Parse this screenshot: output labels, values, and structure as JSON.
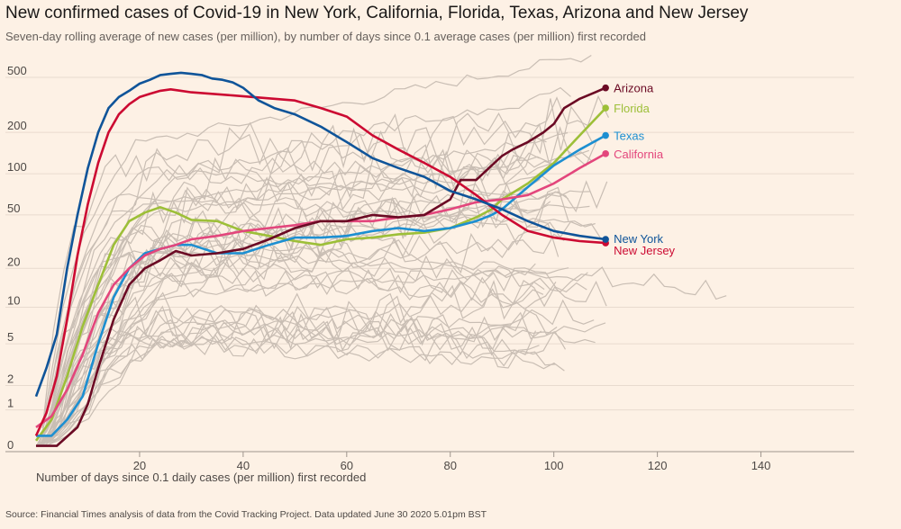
{
  "chart_data": {
    "type": "line",
    "title": "New confirmed cases of Covid-19 in New York, California, Florida, Texas, Arizona and New Jersey",
    "subtitle": "Seven-day rolling average of new cases (per million), by number of days since 0.1 average cases (per million) first recorded",
    "xlabel": "Number of days since 0.1 daily cases (per million) first recorded",
    "ylabel": "",
    "source": "Source: Financial Times analysis of data from the Covid Tracking Project. Data updated June 30 2020 5.01pm BST",
    "x_ticks": [
      20,
      40,
      60,
      80,
      100,
      120,
      140
    ],
    "y_ticks": [
      0,
      1,
      2,
      5,
      10,
      20,
      50,
      100,
      200,
      500
    ],
    "xlim": [
      0,
      158
    ],
    "ylim": [
      0,
      500
    ],
    "y_scale": "log(1+y)",
    "grid": true,
    "legend": "inline labels at line ends",
    "colors": {
      "background": "#fdf1e5",
      "grid": "#e6d9ce",
      "other_states": "#c8bdb3",
      "New York": "#0f5499",
      "New Jersey": "#cc0a32",
      "Arizona": "#6b0a24",
      "Florida": "#9dbf38",
      "Texas": "#1d8fd1",
      "California": "#e3467c"
    },
    "series": [
      {
        "name": "Arizona",
        "x": [
          0,
          4,
          8,
          10,
          12,
          15,
          18,
          21,
          24,
          27,
          30,
          35,
          40,
          45,
          50,
          55,
          60,
          65,
          70,
          75,
          80,
          82,
          85,
          88,
          90,
          92,
          95,
          98,
          100,
          102,
          105,
          108,
          110
        ],
        "y": [
          0.1,
          0.1,
          0.5,
          1.2,
          3,
          8,
          15,
          20,
          23,
          27,
          25,
          26,
          28,
          33,
          40,
          45,
          45,
          50,
          48,
          50,
          65,
          90,
          90,
          115,
          135,
          150,
          170,
          200,
          230,
          300,
          350,
          390,
          420
        ]
      },
      {
        "name": "Florida",
        "x": [
          0,
          3,
          6,
          9,
          12,
          15,
          18,
          21,
          24,
          27,
          30,
          35,
          40,
          45,
          50,
          55,
          60,
          65,
          70,
          75,
          80,
          85,
          88,
          90,
          95,
          100,
          105,
          110
        ],
        "y": [
          0.2,
          0.7,
          2.5,
          7,
          15,
          30,
          45,
          52,
          57,
          52,
          46,
          45,
          38,
          35,
          32,
          30,
          33,
          34,
          36,
          37,
          40,
          48,
          55,
          65,
          85,
          120,
          190,
          300
        ]
      },
      {
        "name": "Texas",
        "x": [
          0,
          3,
          6,
          9,
          12,
          15,
          18,
          21,
          24,
          27,
          30,
          35,
          40,
          45,
          50,
          55,
          60,
          65,
          70,
          75,
          80,
          85,
          88,
          90,
          95,
          100,
          105,
          110
        ],
        "y": [
          0.3,
          0.3,
          0.7,
          1.5,
          5,
          12,
          20,
          26,
          28,
          30,
          30,
          26,
          26,
          30,
          34,
          34,
          35,
          38,
          40,
          38,
          40,
          45,
          50,
          55,
          80,
          115,
          150,
          190
        ]
      },
      {
        "name": "California",
        "x": [
          0,
          3,
          6,
          9,
          12,
          15,
          18,
          21,
          24,
          27,
          30,
          35,
          40,
          45,
          50,
          55,
          60,
          65,
          70,
          75,
          80,
          85,
          90,
          95,
          100,
          105,
          110
        ],
        "y": [
          0.5,
          0.8,
          1.8,
          4,
          9,
          15,
          20,
          25,
          28,
          30,
          33,
          35,
          38,
          40,
          42,
          45,
          45,
          45,
          48,
          50,
          55,
          62,
          65,
          70,
          85,
          110,
          140
        ]
      },
      {
        "name": "New York",
        "x": [
          0,
          2,
          4,
          6,
          8,
          10,
          12,
          14,
          16,
          18,
          20,
          22,
          24,
          26,
          28,
          30,
          32,
          34,
          36,
          38,
          40,
          43,
          46,
          50,
          55,
          60,
          65,
          70,
          75,
          80,
          85,
          90,
          95,
          100,
          105,
          110
        ],
        "y": [
          1.5,
          3,
          6,
          20,
          50,
          110,
          200,
          300,
          360,
          400,
          450,
          480,
          520,
          530,
          540,
          530,
          520,
          490,
          480,
          460,
          420,
          340,
          300,
          270,
          220,
          170,
          130,
          110,
          95,
          75,
          65,
          55,
          45,
          38,
          35,
          33
        ]
      },
      {
        "name": "New Jersey",
        "x": [
          0,
          2,
          4,
          6,
          8,
          10,
          12,
          14,
          16,
          18,
          20,
          22,
          24,
          26,
          28,
          30,
          34,
          38,
          42,
          46,
          50,
          55,
          60,
          65,
          70,
          75,
          80,
          85,
          90,
          95,
          100,
          105,
          110
        ],
        "y": [
          0.3,
          0.9,
          2.5,
          8,
          25,
          60,
          120,
          200,
          270,
          320,
          360,
          380,
          400,
          410,
          400,
          390,
          380,
          370,
          360,
          350,
          340,
          300,
          260,
          190,
          150,
          120,
          95,
          70,
          50,
          38,
          34,
          32,
          31
        ]
      }
    ]
  },
  "labels": {
    "arizona": "Arizona",
    "florida": "Florida",
    "texas": "Texas",
    "california": "California",
    "new_york": "New York",
    "new_jersey": "New Jersey"
  }
}
